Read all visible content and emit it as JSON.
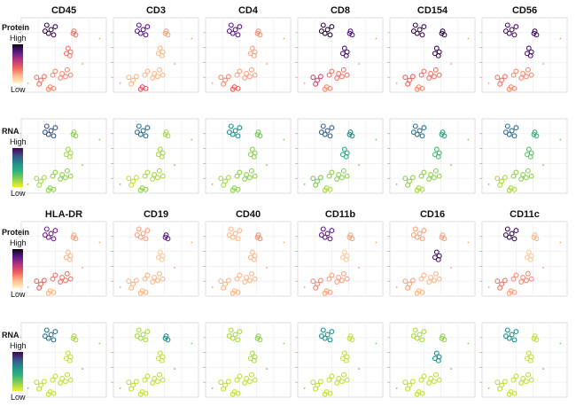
{
  "legends": [
    {
      "title": "Protein",
      "high": "High",
      "low": "Low",
      "scale": "protein"
    },
    {
      "title": "RNA",
      "high": "High",
      "low": "Low",
      "scale": "rna"
    },
    {
      "title": "Protein",
      "high": "High",
      "low": "Low",
      "scale": "protein"
    },
    {
      "title": "RNA",
      "high": "High",
      "low": "Low",
      "scale": "rna"
    }
  ],
  "colors": {
    "protein_scale": [
      "#fff4c8",
      "#fdb88a",
      "#f0605d",
      "#b5367a",
      "#5c1a8c",
      "#0a0614"
    ],
    "rna_scale": [
      "#f1ef2a",
      "#8fd14f",
      "#2fb47c",
      "#21908c",
      "#3b528b",
      "#440154"
    ],
    "grid": "#ececec",
    "plot_border": "#d8d8d8"
  },
  "chart_data": {
    "type": "scatter",
    "description_free": true,
    "markers_row1": [
      "CD45",
      "CD3",
      "CD4",
      "CD8",
      "CD154",
      "CD56"
    ],
    "markers_row2": [
      "HLA-DR",
      "CD19",
      "CD40",
      "CD11b",
      "CD16",
      "CD11c"
    ],
    "clusters": [
      "top-left",
      "top-right",
      "mid-right",
      "center",
      "lower-left",
      "lower-mid"
    ],
    "expression": {
      "protein_block1": [
        [
          0.9,
          0.8,
          0.8,
          0.95,
          0.9,
          0.85
        ],
        [
          0.35,
          0.25,
          0.3,
          0.8,
          0.9,
          0.85
        ],
        [
          0.35,
          0.2,
          0.25,
          0.85,
          0.9,
          0.85
        ],
        [
          0.3,
          0.2,
          0.25,
          0.35,
          0.35,
          0.3
        ],
        [
          0.35,
          0.2,
          0.3,
          0.5,
          0.4,
          0.35
        ],
        [
          0.3,
          0.45,
          0.4,
          0.3,
          0.3,
          0.3
        ]
      ],
      "rna_block1": [
        [
          0.8,
          0.7,
          0.6,
          0.75,
          0.7,
          0.7
        ],
        [
          0.2,
          0.15,
          0.25,
          0.6,
          0.5,
          0.4
        ],
        [
          0.15,
          0.15,
          0.2,
          0.45,
          0.35,
          0.3
        ],
        [
          0.2,
          0.15,
          0.2,
          0.2,
          0.2,
          0.2
        ],
        [
          0.15,
          0.1,
          0.15,
          0.25,
          0.2,
          0.15
        ],
        [
          0.2,
          0.2,
          0.2,
          0.15,
          0.15,
          0.15
        ]
      ],
      "protein_block2": [
        [
          0.75,
          0.25,
          0.2,
          0.8,
          0.25,
          0.9
        ],
        [
          0.25,
          0.8,
          0.3,
          0.25,
          0.25,
          0.2
        ],
        [
          0.2,
          0.15,
          0.2,
          0.15,
          0.85,
          0.15
        ],
        [
          0.35,
          0.2,
          0.2,
          0.25,
          0.2,
          0.3
        ],
        [
          0.4,
          0.2,
          0.2,
          0.3,
          0.25,
          0.35
        ],
        [
          0.2,
          0.2,
          0.2,
          0.25,
          0.2,
          0.25
        ]
      ],
      "rna_block2": [
        [
          0.7,
          0.15,
          0.15,
          0.6,
          0.15,
          0.6
        ],
        [
          0.15,
          0.6,
          0.2,
          0.1,
          0.2,
          0.1
        ],
        [
          0.1,
          0.1,
          0.15,
          0.1,
          0.6,
          0.1
        ],
        [
          0.1,
          0.1,
          0.1,
          0.1,
          0.1,
          0.1
        ],
        [
          0.1,
          0.1,
          0.1,
          0.1,
          0.1,
          0.1
        ],
        [
          0.1,
          0.1,
          0.1,
          0.1,
          0.1,
          0.1
        ]
      ]
    },
    "grid": true
  }
}
